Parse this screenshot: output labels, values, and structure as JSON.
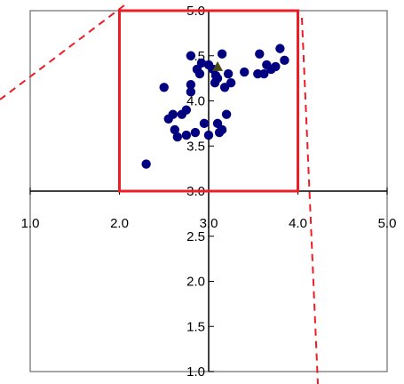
{
  "chart_data": {
    "type": "scatter",
    "title": "",
    "xlabel": "",
    "ylabel": "",
    "xlim": [
      1.0,
      5.0
    ],
    "ylim": [
      1.0,
      5.0
    ],
    "x_ticks": [
      "1.0",
      "2.0",
      "3.0",
      "4.0",
      "5.0"
    ],
    "y_ticks": [
      "1.0",
      "1.5",
      "2.0",
      "2.5",
      "3.0",
      "3.5",
      "4.0",
      "4.5",
      "5.0"
    ],
    "axes_cross_at": [
      3.0,
      3.0
    ],
    "grid": false,
    "legend": "none",
    "series": [
      {
        "color": "#000080",
        "marker": "circle",
        "points": [
          [
            2.3,
            3.3
          ],
          [
            2.5,
            4.15
          ],
          [
            2.55,
            3.8
          ],
          [
            2.6,
            3.85
          ],
          [
            2.62,
            3.68
          ],
          [
            2.65,
            3.6
          ],
          [
            2.7,
            3.85
          ],
          [
            2.75,
            3.9
          ],
          [
            2.75,
            3.62
          ],
          [
            2.8,
            4.18
          ],
          [
            2.8,
            4.1
          ],
          [
            2.8,
            4.5
          ],
          [
            2.85,
            3.65
          ],
          [
            2.87,
            4.35
          ],
          [
            2.9,
            4.3
          ],
          [
            2.92,
            4.42
          ],
          [
            2.95,
            3.75
          ],
          [
            3.0,
            4.4
          ],
          [
            3.0,
            3.62
          ],
          [
            3.05,
            4.35
          ],
          [
            3.07,
            4.2
          ],
          [
            3.08,
            4.28
          ],
          [
            3.1,
            4.25
          ],
          [
            3.1,
            3.75
          ],
          [
            3.12,
            3.65
          ],
          [
            3.15,
            4.52
          ],
          [
            3.15,
            3.68
          ],
          [
            3.18,
            4.15
          ],
          [
            3.2,
            3.85
          ],
          [
            3.22,
            4.3
          ],
          [
            3.25,
            4.2
          ],
          [
            3.4,
            4.32
          ],
          [
            3.55,
            4.3
          ],
          [
            3.57,
            4.52
          ],
          [
            3.62,
            4.3
          ],
          [
            3.65,
            4.4
          ],
          [
            3.7,
            4.35
          ],
          [
            3.75,
            4.38
          ],
          [
            3.8,
            4.58
          ],
          [
            3.85,
            4.45
          ]
        ]
      },
      {
        "color": "#4a4a1a",
        "marker": "triangle",
        "points": [
          [
            3.1,
            4.38
          ]
        ]
      }
    ],
    "annotations": [
      {
        "type": "rectangle",
        "color": "#ee1c25",
        "x": [
          2.0,
          4.0
        ],
        "y": [
          3.0,
          5.0
        ]
      },
      {
        "type": "dashed-line",
        "color": "#ee1c25",
        "from_corner": "top-left"
      },
      {
        "type": "dashed-line",
        "color": "#ee1c25",
        "from_corner": "top-right"
      }
    ]
  }
}
